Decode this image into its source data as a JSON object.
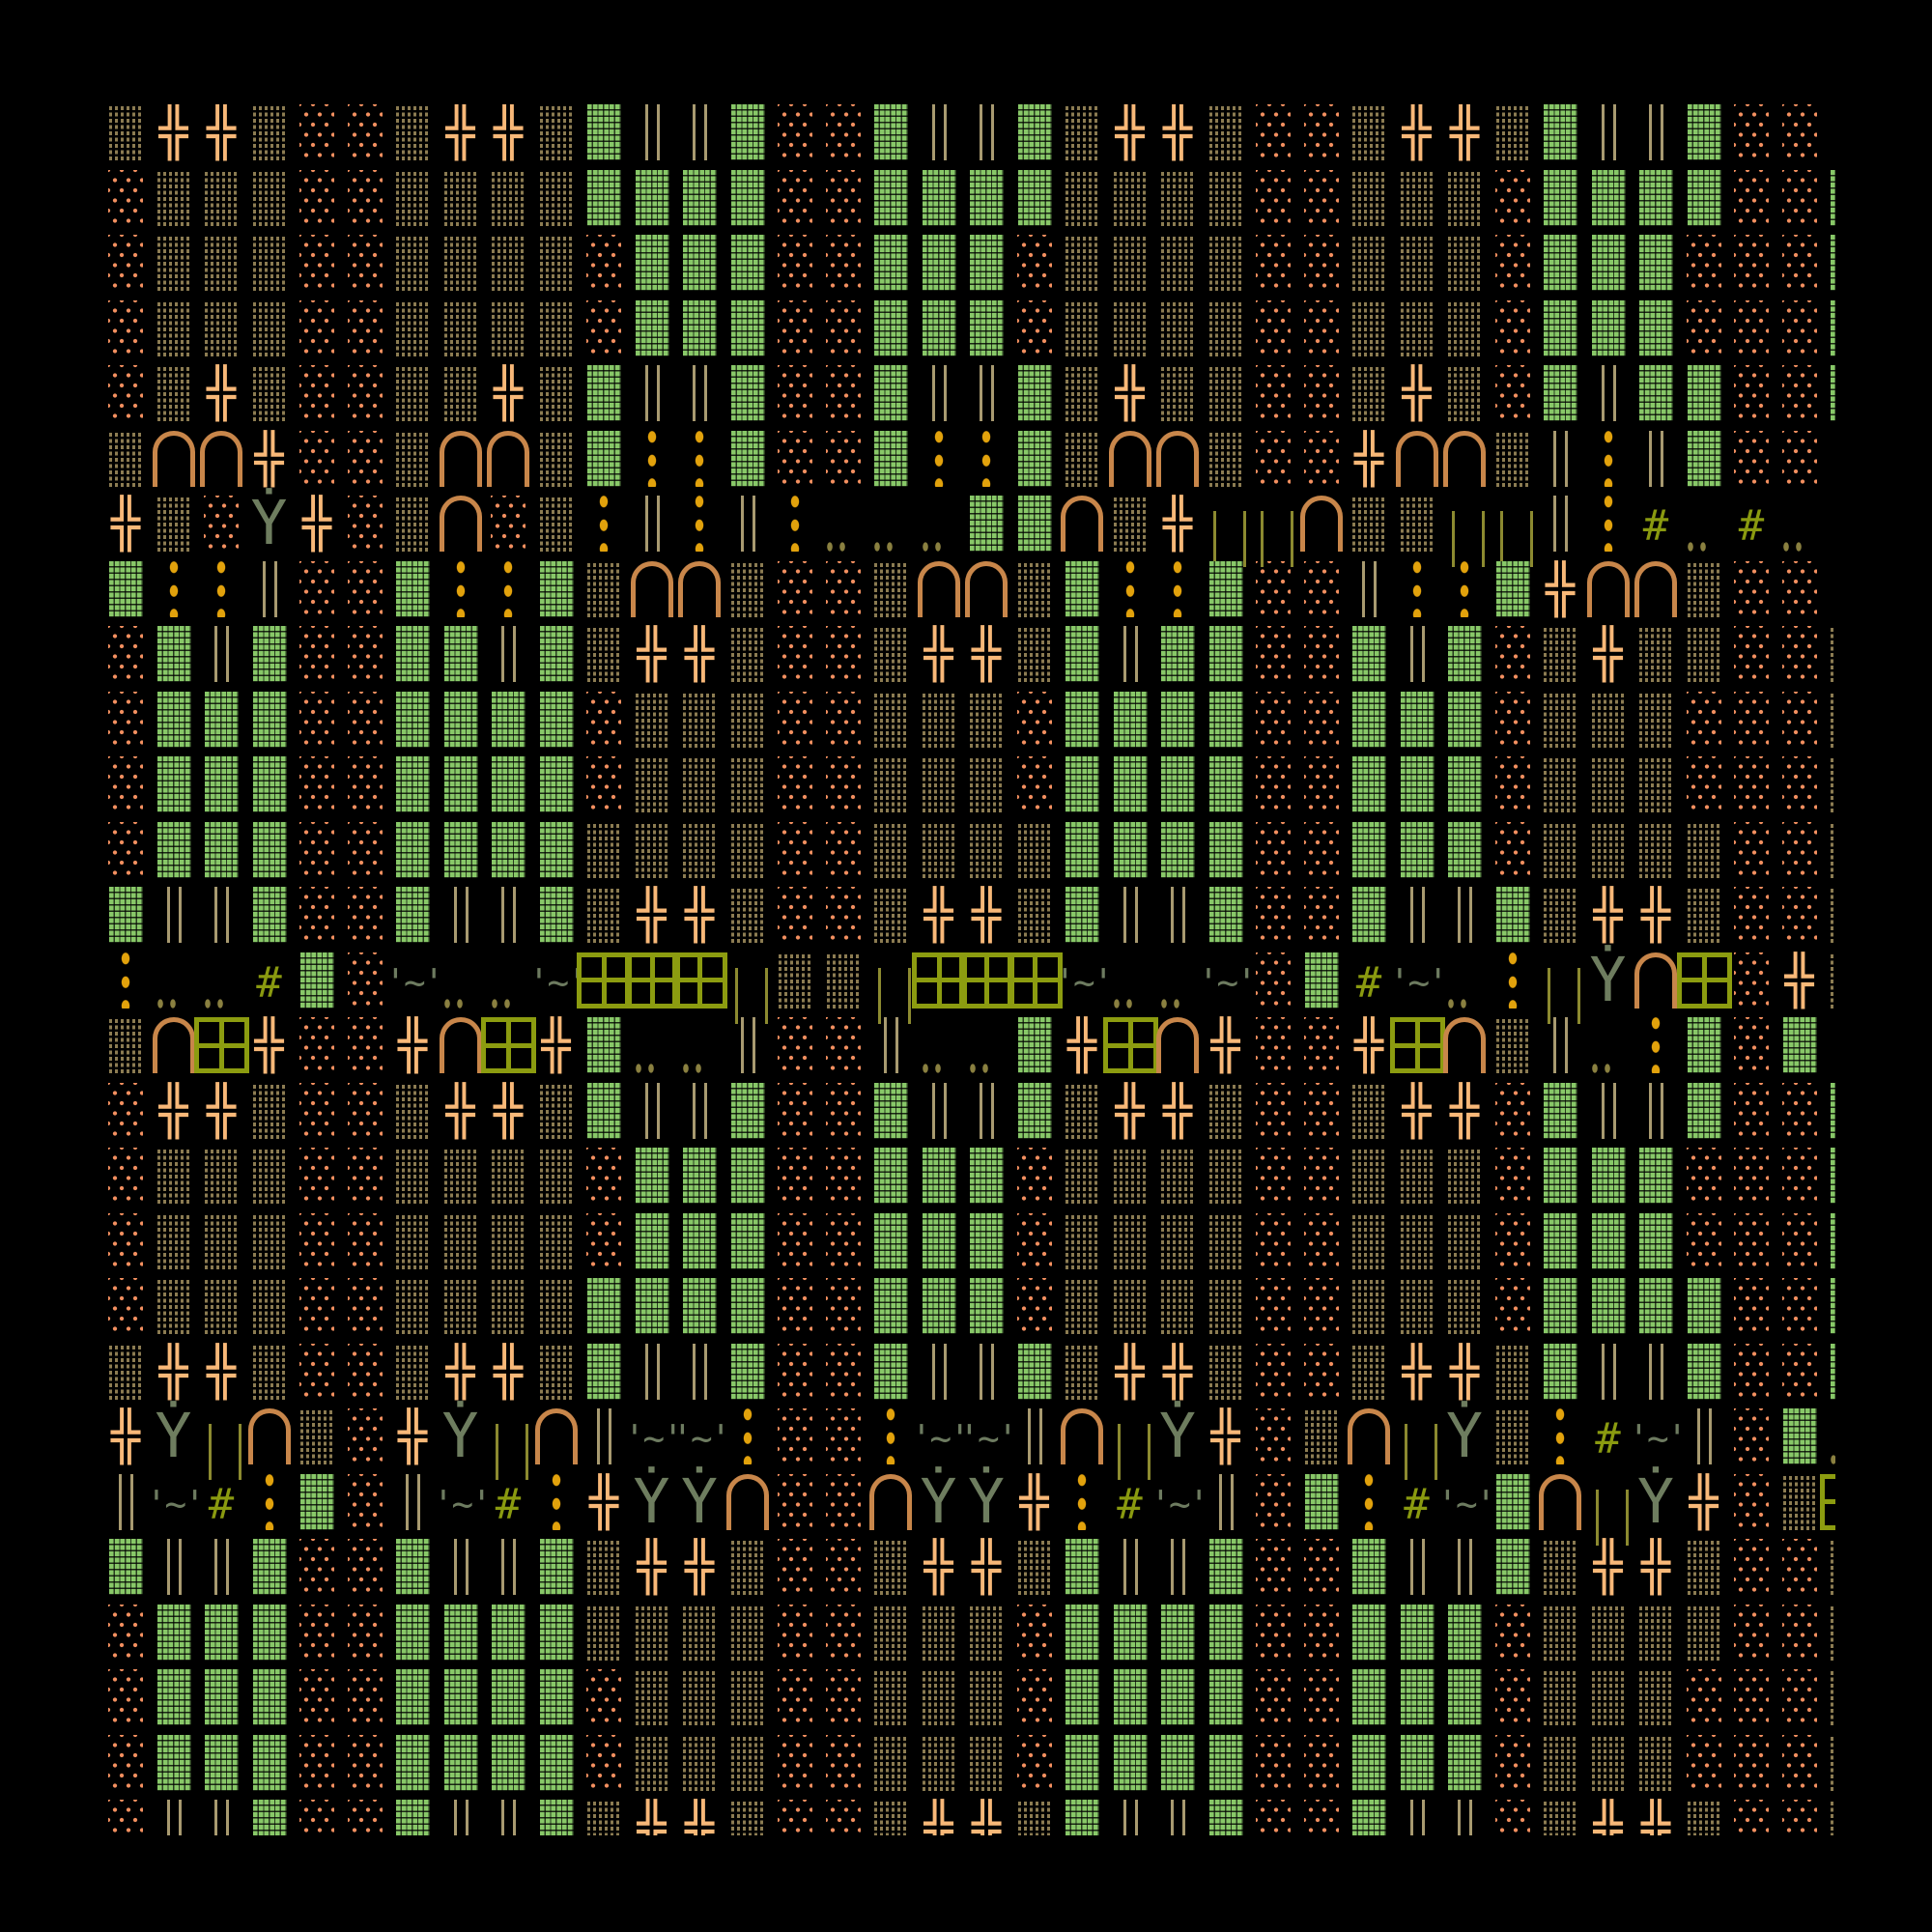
{
  "tiles": {
    "D": {
      "name": "dark-rubble-floor",
      "shape": "dense-stipple",
      "color": "#8c7c52"
    },
    "O": {
      "name": "sand-floor",
      "shape": "sparse-dots",
      "color": "#f49060"
    },
    "G": {
      "name": "grass-block",
      "shape": "textured-block",
      "color": "#88c868"
    },
    "X": {
      "name": "double-cross-wall",
      "glyph": "╬",
      "color": "#f8b878"
    },
    "V": {
      "name": "double-pillar",
      "shape": "double-vertical-line",
      "color": "#a89a70"
    },
    "A": {
      "name": "archway",
      "shape": "arch",
      "color": "#c8864a"
    },
    "Y": {
      "name": "tree",
      "glyph": "Ẏ",
      "color": "#6e7d5f"
    },
    "C": {
      "name": "gold-dots",
      "shape": "vertical-three-dots",
      "color": "#e2a20c"
    },
    "P": {
      "name": "pebbles",
      "shape": "two-dots",
      "color": "#8a8040"
    },
    "H": {
      "name": "hash-grate",
      "glyph": "#",
      "color": "#8a9a10"
    },
    "T": {
      "name": "water-ripple",
      "glyph": "'~'",
      "color": "#6d7b60"
    },
    "W": {
      "name": "window",
      "shape": "four-pane-window",
      "color": "#8c9c10"
    },
    "I": {
      "name": "fence-posts",
      "shape": "two-thin-posts",
      "color": "#8c8a30"
    },
    ".": {
      "name": "void",
      "shape": "empty",
      "color": "#000000"
    }
  },
  "map": {
    "rows": [
      "DXXDOODXXDGVVGOOGVVGDXXDOODXXDGVVGOO.",
      "ODDDOODDDDGGGGOOGGGGDDDDOODDDOGGGGOOG",
      "ODDDOODDDDOGGGOOGGGODDDDOODDDOGGGOOOG",
      "ODDDOODDDDOGGGOOGGGODDDDOODDDOGGGOOOG",
      "ODXDOODDXDGVVGOOGVVGDXDDOODXDOGVGGOOG",
      "DAAXOODAADGCCGOOGCCGDAADOOXAADVCVGOO.",
      "XDOYXODAODCVCVCPPPGGADXIIADDIIVCHPHP.",
      "GCCVOOGCCGDAADOODAADGCCGOOVCCGXAADOOC",
      "OGVGOOGGVGDXXDOODXXDGVGGOOGVGODXDDOOD",
      "OGGGOOGGGGODDDOODDDOGGGGOOGGGODDDOOOD",
      "OGGGOOGGGGODDDOODDDOGGGGOOGGGODDDOOOD",
      "OGGGOOGGGGDDDDOODDDDGGGGOOGGGODDDDOOD",
      "GVVGOOGVVGDXXDOODXXDGVVGOOGVVGDXXDOOD",
      "CPPHGOTPPTWWWIDDIWWWTPPTOGHTPCIYAWOXD",
      "DAWXOOXAWXGPPVOOVPPGXWAXOOXWADVPCGOG.",
      "OXXDOODXXDGVVGOOGVVGDXXDOODXXOGVVGOOG",
      "ODDDOODDDDOGGGOOGGGODDDDOODDDOGGGOOOG",
      "ODDDOODDDDOGGGOOGGGODDDDOODDDOGGGOOOG",
      "ODDDOODDDDGGGGOOGGGODDDDOODDDOGGGGOOG",
      "DXXDOODXXDGVVGOOGVVGDXXDOODXXDGVVGOOG",
      "XYIADOXYIAVTTCOOCTTVAIYXODAIYDCHTVOGP",
      "VTHCGOVTHCXYYAOOAYYXCHTVOGCHTGAIYXODW",
      "GVVGOOGVVGDXXDOODXXDGVVGOOGVVGDXXDOOD",
      "OGGGOOGGGGDDDDOODDDOGGGGOOGGGODDDDOOD",
      "OGGGOOGGGGODDDOODDDOGGGGOOGGGODDDOOOD",
      "OGGGOOGGGGODDDOODDDOGGGGOOGGGODDDOOOD",
      "OVVGOOGVVGDXXDOODXXDGVVGOOGVVODXXDOOD"
    ]
  }
}
